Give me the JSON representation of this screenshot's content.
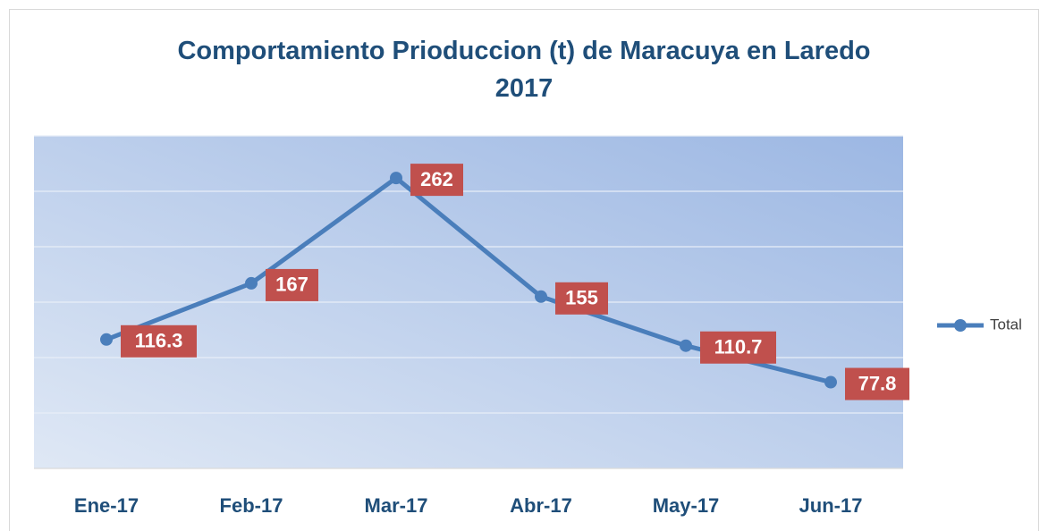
{
  "chart_data": {
    "type": "line",
    "title": "Comportamiento Prioduccion (t) de Maracuya en Laredo 2017",
    "categories": [
      "Ene-17",
      "Feb-17",
      "Mar-17",
      "Abr-17",
      "May-17",
      "Jun-17"
    ],
    "series": [
      {
        "name": "Total",
        "color": "#4a7ebb",
        "values": [
          116.3,
          167,
          262,
          155,
          110.7,
          77.8
        ]
      }
    ],
    "ylim": [
      0,
      300
    ],
    "yticks": [
      0,
      50,
      100,
      150,
      200,
      250,
      300
    ],
    "grid": true,
    "legend": "right",
    "label_color": "#c0504d"
  }
}
